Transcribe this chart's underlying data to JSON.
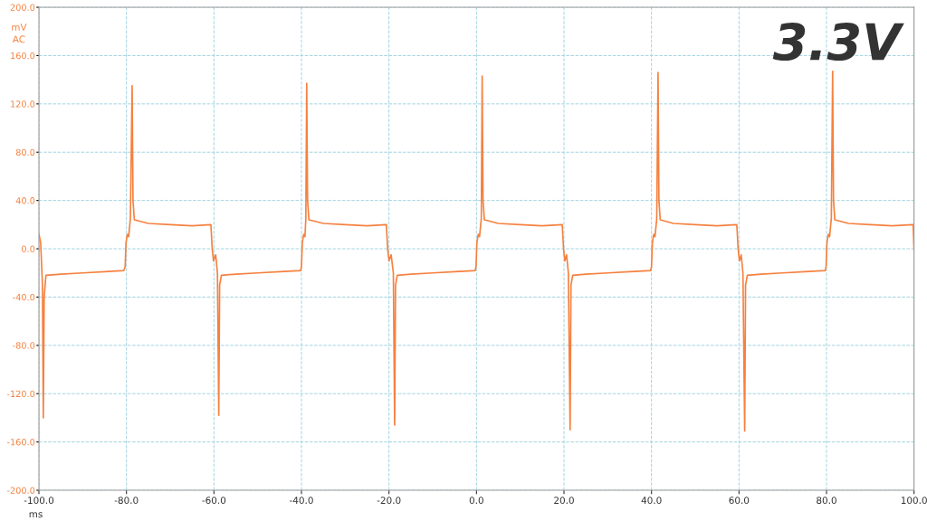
{
  "chart_data": {
    "type": "line",
    "title": "3.3V",
    "xlabel": "ms",
    "ylabel": "mV\nAC",
    "x": [
      -100,
      -99.6,
      -99.2,
      -99.0,
      -98.8,
      -98.4,
      -95,
      -90,
      -85,
      -80.6,
      -80.3,
      -80.1,
      -79.8,
      -79.5,
      -79.1,
      -78.7,
      -78.5,
      -78.2,
      -75,
      -70,
      -65,
      -60.7,
      -60.4,
      -60.1,
      -59.6,
      -59.2,
      -58.9,
      -58.7,
      -58.3,
      -55,
      -50,
      -45,
      -40.2,
      -40.0,
      -39.8,
      -39.5,
      -39.2,
      -39.0,
      -38.8,
      -38.6,
      -38.3,
      -35,
      -30,
      -25,
      -20.6,
      -20.3,
      -20.0,
      -19.5,
      -19.0,
      -18.7,
      -18.5,
      -18.1,
      -15,
      -10,
      -5,
      -0.3,
      -0.1,
      0.1,
      0.4,
      0.7,
      1.1,
      1.3,
      1.5,
      1.8,
      5,
      10,
      15,
      19.6,
      19.9,
      20.2,
      20.6,
      21.0,
      21.4,
      21.6,
      22.0,
      25,
      30,
      35,
      39.8,
      40.0,
      40.2,
      40.5,
      40.8,
      41.2,
      41.5,
      41.7,
      42.0,
      45,
      50,
      55,
      59.5,
      59.8,
      60.1,
      60.5,
      60.9,
      61.3,
      61.5,
      61.9,
      65,
      70,
      75,
      79.7,
      79.9,
      80.1,
      80.4,
      80.7,
      81.1,
      81.4,
      81.6,
      81.9,
      85,
      90,
      95,
      99.8,
      100
    ],
    "series": [
      {
        "color": "#f5813f",
        "values": [
          12,
          5,
          -30,
          -140,
          -40,
          -22,
          -21,
          -20,
          -19,
          -18,
          -15,
          5,
          12,
          10,
          25,
          135,
          40,
          24,
          21,
          20,
          19,
          20,
          0,
          -10,
          -5,
          -20,
          -138,
          -30,
          -22,
          -21,
          -20,
          -19,
          -18,
          -15,
          5,
          12,
          10,
          25,
          137,
          40,
          24,
          21,
          20,
          19,
          20,
          0,
          -10,
          -5,
          -20,
          -146,
          -30,
          -22,
          -21,
          -20,
          -19,
          -18,
          -15,
          5,
          12,
          10,
          25,
          143,
          40,
          24,
          21,
          20,
          19,
          20,
          0,
          -10,
          -5,
          -20,
          -150,
          -30,
          -22,
          -21,
          -20,
          -19,
          -18,
          -15,
          5,
          12,
          10,
          25,
          146,
          40,
          24,
          21,
          20,
          19,
          20,
          0,
          -10,
          -5,
          -20,
          -151,
          -30,
          -22,
          -21,
          -20,
          -19,
          -18,
          -15,
          5,
          12,
          10,
          25,
          147,
          40,
          24,
          21,
          20,
          19,
          20,
          0
        ]
      }
    ],
    "xlim": [
      -100,
      100
    ],
    "ylim": [
      -200,
      200
    ],
    "xticks": [
      {
        "value": -100,
        "label": "-100.0"
      },
      {
        "value": -80,
        "label": "-80.0"
      },
      {
        "value": -60,
        "label": "-60.0"
      },
      {
        "value": -40,
        "label": "-40.0"
      },
      {
        "value": -20,
        "label": "-20.0"
      },
      {
        "value": 0,
        "label": "0.0"
      },
      {
        "value": 20,
        "label": "20.0"
      },
      {
        "value": 40,
        "label": "40.0"
      },
      {
        "value": 60,
        "label": "60.0"
      },
      {
        "value": 80,
        "label": "80.0"
      },
      {
        "value": 100,
        "label": "100.0"
      }
    ],
    "yticks": [
      {
        "value": -200,
        "label": "-200.0"
      },
      {
        "value": -160,
        "label": "-160.0"
      },
      {
        "value": -120,
        "label": "-120.0"
      },
      {
        "value": -80,
        "label": "-80.0"
      },
      {
        "value": -40,
        "label": "-40.0"
      },
      {
        "value": 0,
        "label": "0.0"
      },
      {
        "value": 40,
        "label": "40.0"
      },
      {
        "value": 80,
        "label": "80.0"
      },
      {
        "value": 120,
        "label": "120.0"
      },
      {
        "value": 160,
        "label": "160.0"
      },
      {
        "value": 200,
        "label": "200.0"
      }
    ],
    "grid": true,
    "line_style": "solid"
  }
}
